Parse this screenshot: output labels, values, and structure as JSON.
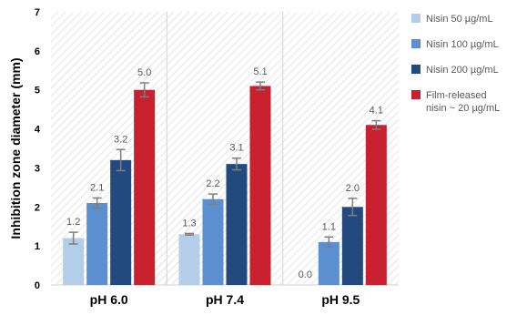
{
  "chart_data": {
    "type": "bar",
    "categories": [
      "pH 6.0",
      "pH 7.4",
      "pH 9.5"
    ],
    "ylabel": "Inhibition zone diameter (mm)",
    "ylim": [
      0,
      7
    ],
    "yticks": [
      "0",
      "1",
      "2",
      "3",
      "4",
      "5",
      "6",
      "7"
    ],
    "grid": false,
    "background": "diagonal-hatch",
    "legend_position": "right",
    "series": [
      {
        "name": "Nisin 50 µg/mL",
        "color": "#b4cde9",
        "values": [
          1.2,
          1.3,
          0
        ],
        "errors": [
          0.15,
          0.02,
          0
        ],
        "labels": [
          "1.2",
          "1.3",
          "0.0"
        ]
      },
      {
        "name": "Nisin 100 µg/mL",
        "color": "#5b8fd0",
        "values": [
          2.1,
          2.2,
          1.1
        ],
        "errors": [
          0.13,
          0.13,
          0.13
        ],
        "labels": [
          "2.1",
          "2.2",
          "1.1"
        ]
      },
      {
        "name": "Nisin 200 µg/mL",
        "color": "#234a7f",
        "values": [
          3.2,
          3.1,
          2.0
        ],
        "errors": [
          0.27,
          0.15,
          0.22
        ],
        "labels": [
          "3.2",
          "3.1",
          "2.0"
        ]
      },
      {
        "name": "Film-released nisin ~ 20 µg/mL",
        "color": "#c8202f",
        "values": [
          5.0,
          5.1,
          4.1
        ],
        "errors": [
          0.18,
          0.1,
          0.11
        ],
        "labels": [
          "5.0",
          "5.1",
          "4.1"
        ]
      }
    ]
  }
}
